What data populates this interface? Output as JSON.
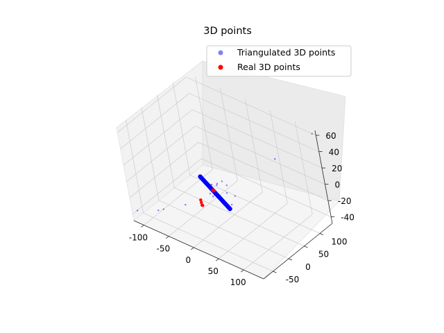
{
  "chart_data": {
    "type": "scatter3d",
    "title": "3D points",
    "legend_position": "top-right",
    "axes": {
      "x": {
        "lim": [
          -120,
          140
        ],
        "ticks": [
          -100,
          -50,
          0,
          50,
          100
        ],
        "label": ""
      },
      "y": {
        "lim": [
          -80,
          140
        ],
        "ticks": [
          -50,
          0,
          50,
          100
        ],
        "label": ""
      },
      "z": {
        "lim": [
          -48,
          66
        ],
        "ticks": [
          -40,
          -20,
          0,
          20,
          40,
          60
        ],
        "label": ""
      }
    },
    "grid": true,
    "series": [
      {
        "name": "Triangulated 3D points",
        "color": "#0000ff",
        "marker_alpha": 0.5,
        "points": [
          [
            -112,
            -75,
            -35
          ],
          [
            -78,
            -60,
            -30
          ],
          [
            -70,
            -55,
            -28
          ],
          [
            -40,
            -30,
            -22
          ],
          [
            -20,
            -10,
            -20
          ],
          [
            140,
            130,
            65
          ],
          [
            80,
            90,
            30
          ],
          [
            10,
            20,
            5
          ],
          [
            5,
            10,
            2
          ],
          [
            15,
            25,
            0
          ],
          [
            20,
            15,
            -5
          ],
          [
            -5,
            0,
            -8
          ],
          [
            0,
            5,
            -10
          ],
          [
            25,
            30,
            -12
          ],
          [
            30,
            10,
            -15
          ],
          [
            8,
            -10,
            -5
          ],
          [
            -10,
            15,
            -3
          ],
          [
            12,
            3,
            8
          ]
        ]
      },
      {
        "name": "Real 3D points",
        "color": "#ff0000",
        "points": [
          [
            -20,
            -10,
            -20
          ],
          [
            -18,
            -12,
            -22
          ],
          [
            -22,
            -8,
            -18
          ],
          [
            -15,
            -14,
            -21
          ],
          [
            -2,
            5,
            -5
          ],
          [
            0,
            3,
            -3
          ],
          [
            -4,
            7,
            -6
          ],
          [
            2,
            4,
            -4
          ]
        ]
      }
    ],
    "dense_cluster": {
      "color": "#0000ff",
      "note": "dense line of blue points along the center"
    }
  }
}
